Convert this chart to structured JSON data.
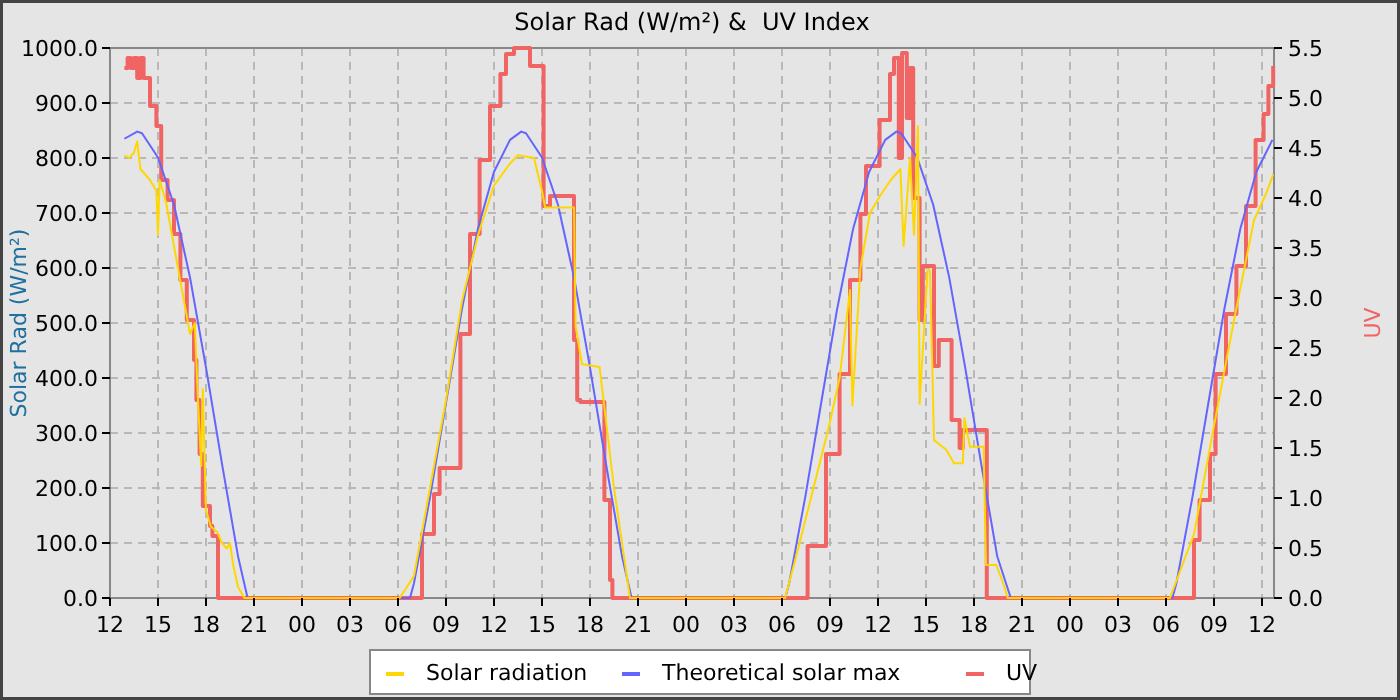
{
  "chart_data": {
    "type": "line",
    "title": "Solar Rad (W/m²) &  UV Index",
    "ylabel": "Solar Rad (W/m²)",
    "y2label": "UV",
    "xlim": [
      12,
      84.75
    ],
    "xticks": [
      {
        "value": 12,
        "label": "12"
      },
      {
        "value": 15,
        "label": "15"
      },
      {
        "value": 18,
        "label": "18"
      },
      {
        "value": 21,
        "label": "21"
      },
      {
        "value": 24,
        "label": "00"
      },
      {
        "value": 27,
        "label": "03"
      },
      {
        "value": 30,
        "label": "06"
      },
      {
        "value": 33,
        "label": "09"
      },
      {
        "value": 36,
        "label": "12"
      },
      {
        "value": 39,
        "label": "15"
      },
      {
        "value": 42,
        "label": "18"
      },
      {
        "value": 45,
        "label": "21"
      },
      {
        "value": 48,
        "label": "00"
      },
      {
        "value": 51,
        "label": "03"
      },
      {
        "value": 54,
        "label": "06"
      },
      {
        "value": 57,
        "label": "09"
      },
      {
        "value": 60,
        "label": "12"
      },
      {
        "value": 63,
        "label": "15"
      },
      {
        "value": 66,
        "label": "18"
      },
      {
        "value": 69,
        "label": "21"
      },
      {
        "value": 72,
        "label": "00"
      },
      {
        "value": 75,
        "label": "03"
      },
      {
        "value": 78,
        "label": "06"
      },
      {
        "value": 81,
        "label": "09"
      },
      {
        "value": 84,
        "label": "12"
      }
    ],
    "ylim": [
      0,
      1000
    ],
    "yticks": [
      {
        "value": 0,
        "label": "0.0"
      },
      {
        "value": 100,
        "label": "100.0"
      },
      {
        "value": 200,
        "label": "200.0"
      },
      {
        "value": 300,
        "label": "300.0"
      },
      {
        "value": 400,
        "label": "400.0"
      },
      {
        "value": 500,
        "label": "500.0"
      },
      {
        "value": 600,
        "label": "600.0"
      },
      {
        "value": 700,
        "label": "700.0"
      },
      {
        "value": 800,
        "label": "800.0"
      },
      {
        "value": 900,
        "label": "900.0"
      },
      {
        "value": 1000,
        "label": "1000.0"
      }
    ],
    "y2lim": [
      0,
      5.5
    ],
    "y2ticks": [
      {
        "value": 0,
        "label": "0.0"
      },
      0.5,
      {
        "value": 1,
        "label": "1.0"
      },
      1.5,
      {
        "value": 2,
        "label": "2.0"
      },
      2.5,
      {
        "value": 3,
        "label": "3.0"
      },
      3.5,
      {
        "value": 4,
        "label": "4.0"
      },
      4.5,
      {
        "value": 5,
        "label": "5.0"
      },
      5.5
    ],
    "grid": true,
    "legend": "bottom",
    "series": [
      {
        "name": "Solar radiation",
        "color": "#ffd700",
        "x": [
          12.9,
          13.2,
          13.5,
          13.7,
          13.9,
          14.2,
          14.5,
          14.9,
          15.0,
          15.1,
          15.5,
          16,
          16.5,
          17,
          17.3,
          17.5,
          17.7,
          17.8,
          18,
          18.3,
          18.7,
          19,
          19.3,
          19.5,
          19.7,
          20,
          20.4,
          30.1,
          31,
          32,
          33,
          34,
          35,
          36,
          37,
          37.5,
          38.5,
          39,
          39.2,
          41,
          41.1,
          41.5,
          42.6,
          43.5,
          44,
          44.5,
          54.2,
          55.1,
          56.4,
          57,
          57.6,
          58.25,
          58.4,
          58.9,
          59.5,
          60.1,
          60.8,
          61.4,
          61.6,
          62,
          62.25,
          62.5,
          62.6,
          63.1,
          63.25,
          63.5,
          64.25,
          64.75,
          65.3,
          65.4,
          65.75,
          66.6,
          66.75,
          67.4,
          67.9,
          68.1,
          78.25,
          79.75,
          81,
          82.25,
          83.5,
          84.25,
          84.7
        ],
        "values": [
          805,
          800,
          810,
          830,
          780,
          770,
          760,
          740,
          660,
          760,
          720,
          640,
          560,
          480,
          500,
          360,
          240,
          380,
          160,
          130,
          120,
          100,
          90,
          100,
          60,
          20,
          0,
          0,
          40,
          200,
          360,
          540,
          660,
          750,
          790,
          805,
          800,
          740,
          710,
          710,
          494,
          425,
          420,
          200,
          100,
          0,
          0,
          100,
          250,
          320,
          400,
          560,
          350,
          600,
          700,
          730,
          760,
          780,
          640,
          800,
          660,
          858,
          353,
          596,
          596,
          287,
          270,
          245,
          245,
          327,
          275,
          275,
          60,
          60,
          20,
          0,
          0,
          116,
          313,
          505,
          687,
          735,
          770
        ]
      },
      {
        "name": "Theoretical solar max",
        "color": "#6464ff",
        "x": [
          12.9,
          13.7,
          14,
          15,
          16,
          17,
          18,
          19,
          20,
          20.6,
          30.75,
          31,
          32,
          33,
          34,
          35,
          36,
          37,
          37.7,
          38,
          39,
          40,
          41,
          42,
          43,
          44,
          44.6,
          54.2,
          54.45,
          55.45,
          56.45,
          57.45,
          58.45,
          59.45,
          60.45,
          61.15,
          61.45,
          62.45,
          63.45,
          64.45,
          65.45,
          66.45,
          67.45,
          68.3,
          78.4,
          78.65,
          79.65,
          80.65,
          81.65,
          82.65,
          83.65,
          84.65
        ],
        "values": [
          835,
          848,
          845,
          801,
          715,
          583,
          419,
          244,
          76,
          0,
          0,
          27,
          183,
          355,
          526,
          672,
          775,
          833,
          848,
          845,
          801,
          715,
          583,
          419,
          244,
          76,
          0,
          0,
          27,
          183,
          355,
          526,
          672,
          775,
          833,
          848,
          845,
          801,
          715,
          583,
          419,
          244,
          76,
          0,
          0,
          27,
          183,
          355,
          526,
          672,
          775,
          833
        ]
      },
      {
        "name": "UV",
        "color": "#f06464",
        "type": "step",
        "axis": "y2",
        "x": [
          12.9,
          13.1,
          13.3,
          13.5,
          13.7,
          13.9,
          14.1,
          14.5,
          14.9,
          15.2,
          15.6,
          16,
          16.4,
          16.8,
          17.25,
          17.4,
          17.6,
          17.8,
          18.25,
          18.4,
          18.75,
          31.5,
          32.25,
          32.6,
          33.9,
          34.5,
          35.1,
          35.75,
          36.4,
          36.75,
          37.25,
          38.25,
          39.1,
          39.5,
          41,
          41.2,
          41.4,
          42.9,
          43.25,
          43.4,
          55.6,
          56.75,
          57.6,
          58.25,
          58.9,
          59.25,
          60.1,
          60.75,
          61,
          61.3,
          61.5,
          61.8,
          62,
          62.2,
          62.6,
          62.8,
          63.5,
          63.8,
          64.6,
          65.1,
          65.3,
          66.8,
          79.75,
          80.1,
          80.75,
          81.1,
          81.75,
          82.4,
          83,
          83.6,
          84.1,
          84.4,
          84.7
        ],
        "values": [
          5.3,
          5.4,
          5.3,
          5.4,
          5.2,
          5.4,
          5.2,
          4.92,
          4.72,
          4.18,
          3.98,
          3.64,
          3.18,
          2.78,
          2.38,
          1.98,
          1.44,
          0.92,
          0.72,
          0.62,
          0,
          0.64,
          1.04,
          1.3,
          2.64,
          3.64,
          4.38,
          4.92,
          5.24,
          5.44,
          5.5,
          5.32,
          3.92,
          4.02,
          2.58,
          1.98,
          1.96,
          0.98,
          0.18,
          0,
          0.52,
          1.44,
          2.24,
          3.18,
          3.84,
          4.32,
          4.78,
          5.24,
          5.4,
          4.4,
          5.45,
          4.8,
          5.3,
          4.0,
          2.78,
          3.32,
          2.32,
          2.58,
          1.78,
          1.5,
          1.68,
          0,
          0.58,
          0.98,
          1.44,
          2.24,
          2.84,
          3.32,
          3.92,
          4.58,
          4.84,
          5.12,
          5.32
        ]
      }
    ]
  }
}
